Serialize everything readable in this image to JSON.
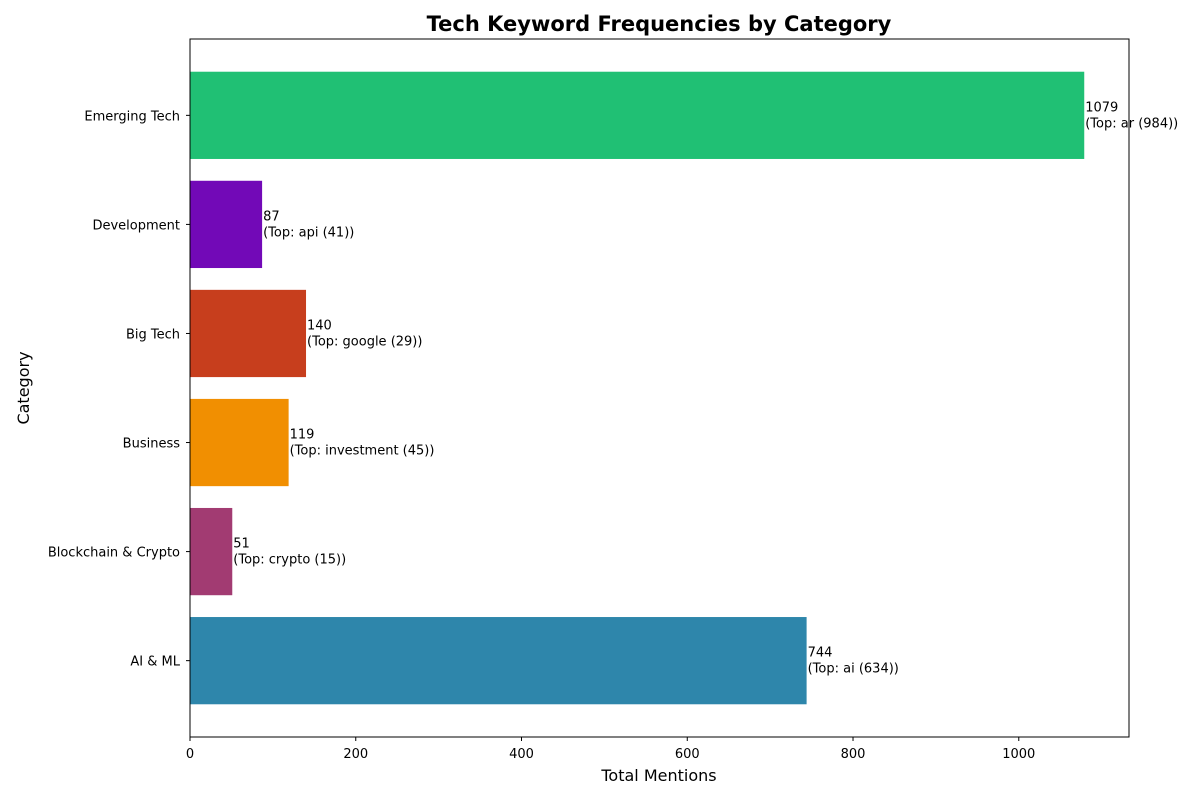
{
  "chart_data": {
    "type": "bar",
    "orientation": "horizontal",
    "title": "Tech Keyword Frequencies by Category",
    "xlabel": "Total Mentions",
    "ylabel": "Category",
    "xlim": [
      0,
      1133
    ],
    "xticks": [
      0,
      200,
      400,
      600,
      800,
      1000
    ],
    "grid": false,
    "categories": [
      "AI & ML",
      "Blockchain & Crypto",
      "Business",
      "Big Tech",
      "Development",
      "Emerging Tech"
    ],
    "values": [
      744,
      51,
      119,
      140,
      87,
      1079
    ],
    "colors": [
      "#2e86ab",
      "#a23b72",
      "#f18f01",
      "#c73e1d",
      "#7209b7",
      "#20c074"
    ],
    "annotations": [
      {
        "value_text": "744",
        "top_text": "(Top: ai (634))"
      },
      {
        "value_text": "51",
        "top_text": "(Top: crypto (15))"
      },
      {
        "value_text": "119",
        "top_text": "(Top: investment (45))"
      },
      {
        "value_text": "140",
        "top_text": "(Top: google (29))"
      },
      {
        "value_text": "87",
        "top_text": "(Top: api (41))"
      },
      {
        "value_text": "1079",
        "top_text": "(Top: ar (984))"
      }
    ]
  }
}
